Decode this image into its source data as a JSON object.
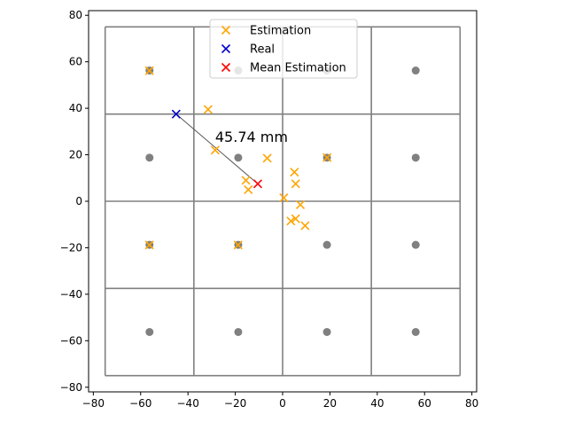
{
  "chart_data": {
    "type": "scatter",
    "title": "",
    "xlabel": "",
    "ylabel": "",
    "xlim": [
      -82,
      82
    ],
    "ylim": [
      -82,
      82
    ],
    "xticks": [
      -80,
      -60,
      -40,
      -20,
      0,
      20,
      40,
      60,
      80
    ],
    "yticks": [
      -80,
      -60,
      -40,
      -20,
      0,
      20,
      40,
      60,
      80
    ],
    "grid": false,
    "legend": {
      "position": "top-center",
      "entries": [
        {
          "label": "Estimation",
          "marker": "x",
          "color": "#ffa500"
        },
        {
          "label": "Real",
          "marker": "x",
          "color": "#0000cc"
        },
        {
          "label": "Mean Estimation",
          "marker": "x",
          "color": "#ff0000"
        }
      ]
    },
    "boundary_grid": {
      "color": "#808080",
      "x_lines": [
        -75,
        -37.5,
        0,
        37.5,
        75
      ],
      "y_lines": [
        -75,
        -37.5,
        0,
        37.5,
        75
      ]
    },
    "reference_points": {
      "color": "#808080",
      "x": [
        -56.25,
        -18.75,
        18.75,
        56.25,
        -56.25,
        -18.75,
        18.75,
        56.25,
        -56.25,
        -18.75,
        18.75,
        56.25,
        -56.25,
        -18.75,
        18.75,
        56.25
      ],
      "y": [
        56.25,
        56.25,
        56.25,
        56.25,
        18.75,
        18.75,
        18.75,
        18.75,
        -18.75,
        -18.75,
        -18.75,
        -18.75,
        -56.25,
        -56.25,
        -56.25,
        -56.25
      ]
    },
    "series": [
      {
        "name": "Estimation",
        "color": "#ffa500",
        "x": [
          -56.3,
          -31.5,
          -28.5,
          -15.5,
          -14.5,
          -6.5,
          0.5,
          5.0,
          5.5,
          7.5,
          3.5,
          5.5,
          9.5,
          -56.3,
          -18.8,
          18.8
        ],
        "y": [
          56.2,
          39.5,
          22.0,
          9.0,
          5.0,
          18.5,
          1.5,
          12.5,
          7.5,
          -1.5,
          -8.5,
          -7.5,
          -10.5,
          -18.8,
          -18.8,
          18.8
        ]
      },
      {
        "name": "Real",
        "color": "#0000cc",
        "x": [
          -45.0
        ],
        "y": [
          37.5
        ]
      },
      {
        "name": "Mean Estimation",
        "color": "#ff0000",
        "x": [
          -10.5
        ],
        "y": [
          7.5
        ]
      }
    ],
    "annotations": [
      {
        "text": "45.74 mm",
        "x": -28.5,
        "y": 25.5
      }
    ]
  }
}
